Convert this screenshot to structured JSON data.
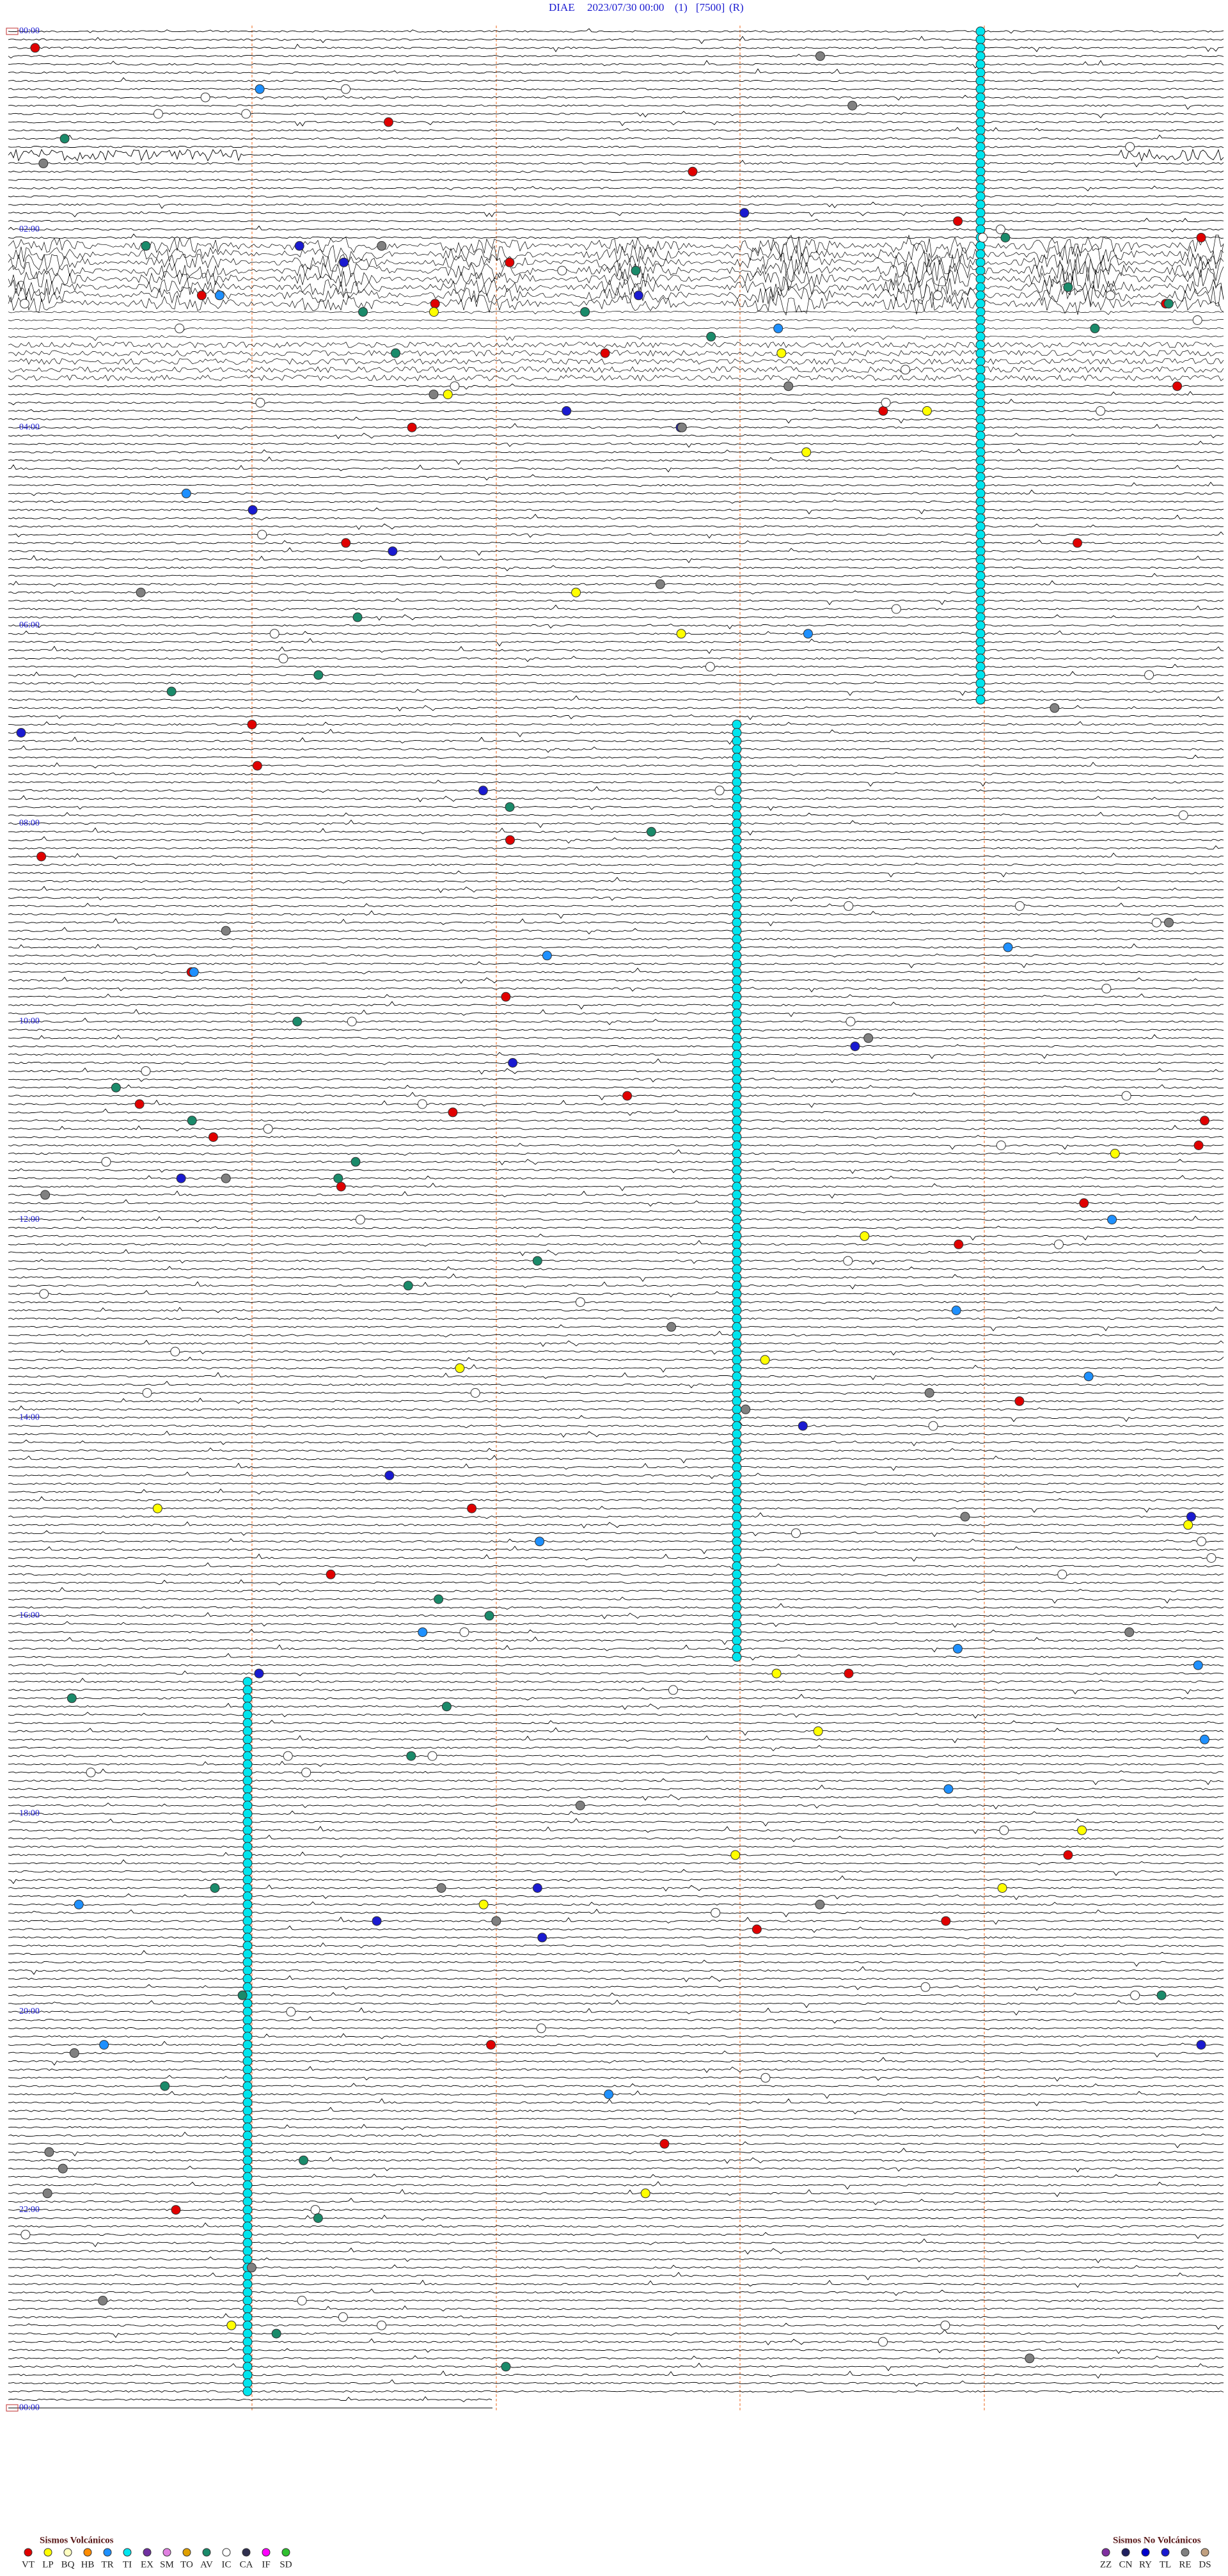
{
  "header": {
    "station": "DIAE",
    "datetime": "2023/07/30 00:00",
    "channel": "(1)",
    "scale": "[7500]",
    "mode": "(R)"
  },
  "time_labels": [
    "00:00",
    "02:00",
    "04:00",
    "06:00",
    "08:00",
    "10:00",
    "12:00",
    "14:00",
    "16:00",
    "18:00",
    "20:00",
    "22:00",
    "00:00"
  ],
  "legend": {
    "volcanic": {
      "title": "Sismos Volcánicos",
      "codes": [
        "VT",
        "LP",
        "BQ",
        "HB",
        "TR",
        "TI",
        "EX",
        "SM",
        "TO",
        "AV",
        "IC",
        "CA",
        "IF",
        "SD"
      ]
    },
    "non_volcanic": {
      "title": "Sismos No Volcánicos",
      "codes": [
        "ZZ",
        "CN",
        "RY",
        "TL",
        "RE",
        "DS"
      ]
    }
  }
}
